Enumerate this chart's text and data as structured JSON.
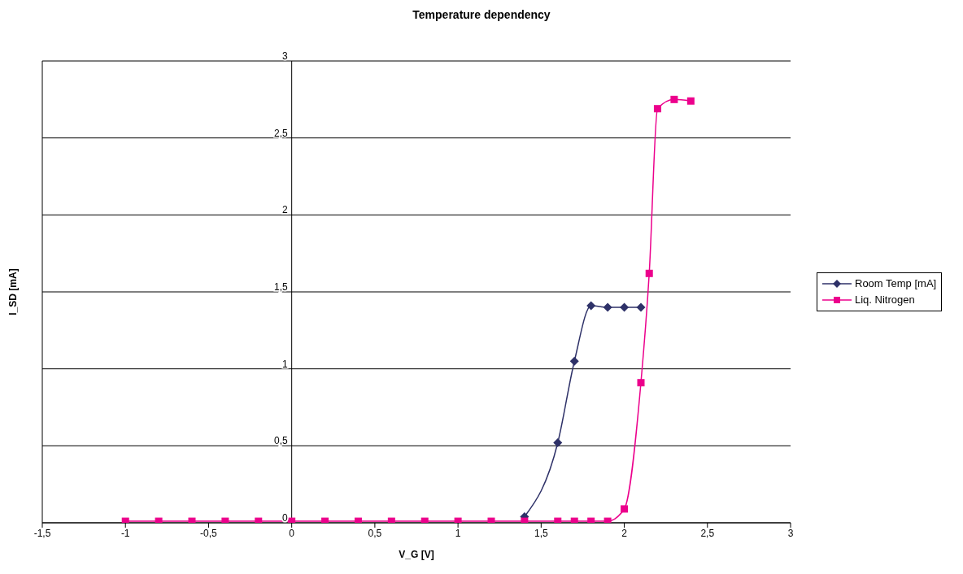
{
  "chart_data": {
    "type": "line",
    "title": "Temperature dependency",
    "xlabel": "V_G [V]",
    "ylabel": "I_SD [mA]",
    "xlim": [
      -1.5,
      3
    ],
    "xticks": [
      {
        "value": -1.5,
        "label": "-1,5"
      },
      -1,
      {
        "value": -0.5,
        "label": "-0,5"
      },
      0,
      {
        "value": 0.5,
        "label": "0,5"
      },
      1,
      {
        "value": 1.5,
        "label": "1,5"
      },
      2,
      {
        "value": 2.5,
        "label": "2,5"
      },
      3
    ],
    "ylim": [
      0,
      3
    ],
    "yticks": [
      0,
      {
        "value": 0.5,
        "label": "0,5"
      },
      1,
      {
        "value": 1.5,
        "label": "1,5"
      },
      2,
      {
        "value": 2.5,
        "label": "2,5"
      },
      3
    ],
    "grid": "y",
    "legend": "right",
    "series": [
      {
        "name": "Room Temp [mA]",
        "color": "#2e3168",
        "marker": "diamond",
        "x": [
          1.4,
          1.6,
          1.7,
          1.8,
          1.9,
          2.0,
          2.1
        ],
        "values": [
          0.04,
          0.52,
          1.05,
          1.41,
          1.4,
          1.4,
          1.4
        ]
      },
      {
        "name": "Liq. Nitrogen",
        "color": "#ec008c",
        "marker": "square",
        "x": [
          -1,
          -0.8,
          -0.6,
          -0.4,
          -0.2,
          0,
          0.2,
          0.4,
          0.6,
          0.8,
          1,
          1.2,
          1.4,
          1.6,
          1.7,
          1.8,
          1.9,
          2.0,
          2.1,
          2.15,
          2.2,
          2.3,
          2.4
        ],
        "values": [
          0.01,
          0.01,
          0.01,
          0.01,
          0.01,
          0.01,
          0.01,
          0.01,
          0.01,
          0.01,
          0.01,
          0.01,
          0.01,
          0.01,
          0.01,
          0.01,
          0.01,
          0.09,
          0.91,
          1.62,
          2.69,
          2.75,
          2.74
        ]
      }
    ]
  }
}
